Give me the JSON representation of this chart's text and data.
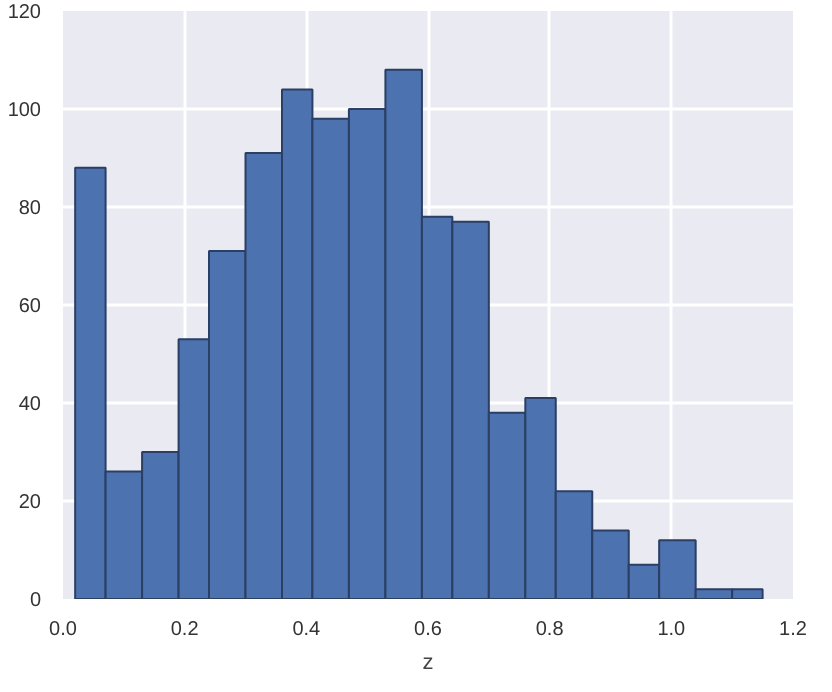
{
  "chart_data": {
    "type": "histogram",
    "xlabel": "z",
    "color": "#4c72b0",
    "bins": [
      0.02,
      0.07,
      0.13,
      0.19,
      0.24,
      0.3,
      0.36,
      0.41,
      0.47,
      0.53,
      0.59,
      0.64,
      0.7,
      0.76,
      0.81,
      0.87,
      0.93,
      0.98,
      1.04,
      1.1,
      1.15
    ],
    "values": [
      88,
      26,
      30,
      53,
      71,
      91,
      104,
      98,
      100,
      108,
      78,
      77,
      38,
      41,
      22,
      14,
      7,
      12,
      2,
      2
    ],
    "xlim": [
      0,
      1.2
    ],
    "ylim": [
      0,
      120
    ],
    "xticks": [
      {
        "value": 0,
        "label": "0.0"
      },
      0.2,
      0.4,
      0.6,
      0.8,
      {
        "value": 1,
        "label": "1.0"
      },
      1.2
    ],
    "yticks": [
      0,
      20,
      40,
      60,
      80,
      100,
      120
    ],
    "grid": true
  }
}
